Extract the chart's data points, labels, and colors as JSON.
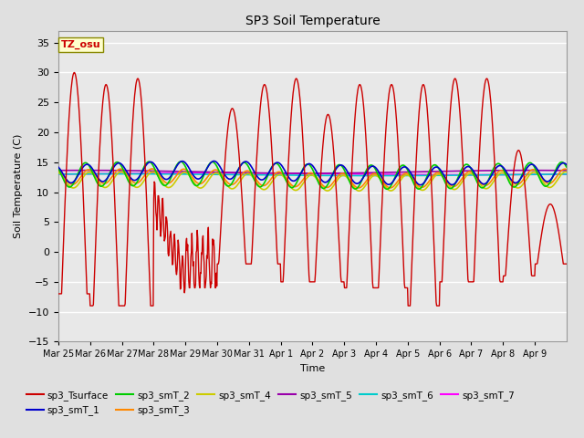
{
  "title": "SP3 Soil Temperature",
  "ylabel": "Soil Temperature (C)",
  "xlabel": "Time",
  "tz_label": "TZ_osu",
  "ylim": [
    -15,
    37
  ],
  "yticks": [
    -15,
    -10,
    -5,
    0,
    5,
    10,
    15,
    20,
    25,
    30,
    35
  ],
  "bg_color": "#e0e0e0",
  "plot_bg_color": "#e8e8e8",
  "grid_color": "#ffffff",
  "series_colors": {
    "sp3_Tsurface": "#cc0000",
    "sp3_smT_1": "#0000cc",
    "sp3_smT_2": "#00cc00",
    "sp3_smT_3": "#ff8800",
    "sp3_smT_4": "#cccc00",
    "sp3_smT_5": "#9900aa",
    "sp3_smT_6": "#00cccc",
    "sp3_smT_7": "#ff00ff"
  },
  "date_labels": [
    "Mar 25",
    "Mar 26",
    "Mar 27",
    "Mar 28",
    "Mar 29",
    "Mar 30",
    "Mar 31",
    "Apr 1",
    "Apr 2",
    "Apr 3",
    "Apr 4",
    "Apr 5",
    "Apr 6",
    "Apr 7",
    "Apr 8",
    "Apr 9"
  ],
  "n_points": 960
}
